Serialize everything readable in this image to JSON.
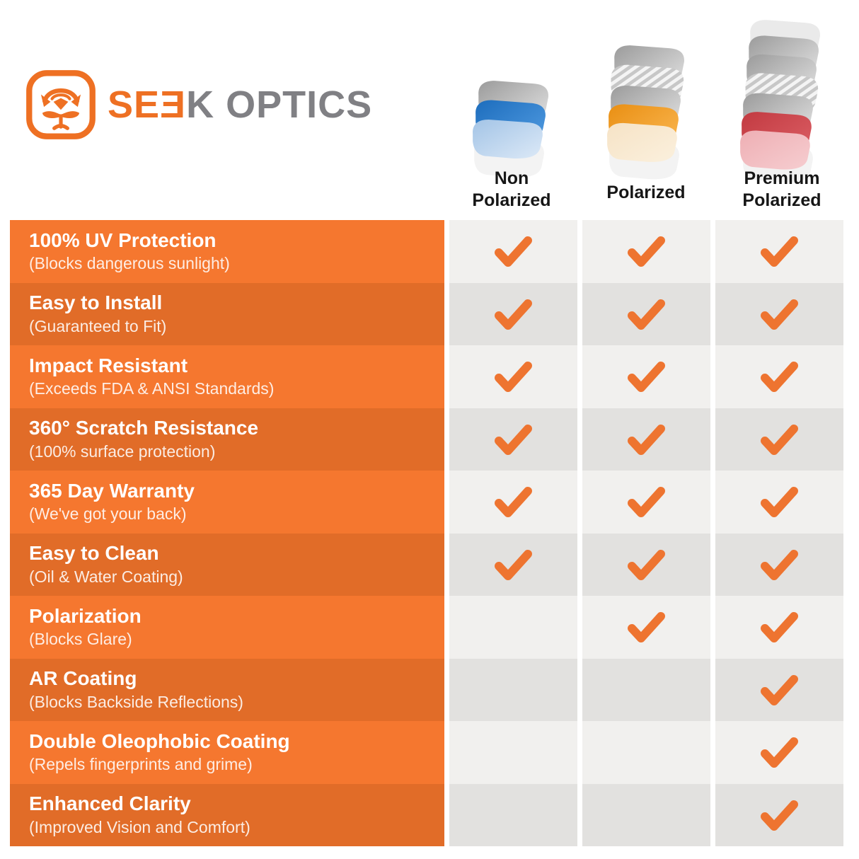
{
  "logo": {
    "brand_part_orange": "SEƎ",
    "brand_part_gray": "K OPTICS",
    "icon": "seek-optics-goggles-icon"
  },
  "columns": [
    {
      "id": "non-polarized",
      "label_lines": [
        "Non",
        "Polarized"
      ],
      "lens_color": "#2b7fc9"
    },
    {
      "id": "polarized",
      "label_lines": [
        "Polarized"
      ],
      "lens_color": "#f09d2a"
    },
    {
      "id": "premium-polarized",
      "label_lines": [
        "Premium",
        "Polarized"
      ],
      "lens_color": "#cc4046"
    }
  ],
  "rows": [
    {
      "title": "100% UV Protection",
      "subtitle": "(Blocks dangerous sunlight)",
      "checks": [
        true,
        true,
        true
      ]
    },
    {
      "title": "Easy to Install",
      "subtitle": "(Guaranteed to Fit)",
      "checks": [
        true,
        true,
        true
      ]
    },
    {
      "title": "Impact Resistant",
      "subtitle": "(Exceeds FDA & ANSI Standards)",
      "checks": [
        true,
        true,
        true
      ]
    },
    {
      "title": "360° Scratch Resistance",
      "subtitle": "(100% surface protection)",
      "checks": [
        true,
        true,
        true
      ]
    },
    {
      "title": "365 Day Warranty",
      "subtitle": "(We've got your back)",
      "checks": [
        true,
        true,
        true
      ]
    },
    {
      "title": "Easy to Clean",
      "subtitle": "(Oil & Water Coating)",
      "checks": [
        true,
        true,
        true
      ]
    },
    {
      "title": "Polarization",
      "subtitle": "(Blocks Glare)",
      "checks": [
        false,
        true,
        true
      ]
    },
    {
      "title": "AR Coating",
      "subtitle": "(Blocks Backside Reflections)",
      "checks": [
        false,
        false,
        true
      ]
    },
    {
      "title": "Double Oleophobic Coating",
      "subtitle": "(Repels fingerprints and grime)",
      "checks": [
        false,
        false,
        true
      ]
    },
    {
      "title": "Enhanced Clarity",
      "subtitle": "(Improved Vision and Comfort)",
      "checks": [
        false,
        false,
        true
      ]
    }
  ],
  "colors": {
    "row_orange_light": "#f5772f",
    "row_orange_dark": "#e16c28",
    "cell_gray_light": "#f1f0ee",
    "cell_gray_dark": "#e2e1df",
    "check_orange": "#ee7430",
    "logo_orange": "#ee7023",
    "logo_gray": "#808084"
  }
}
